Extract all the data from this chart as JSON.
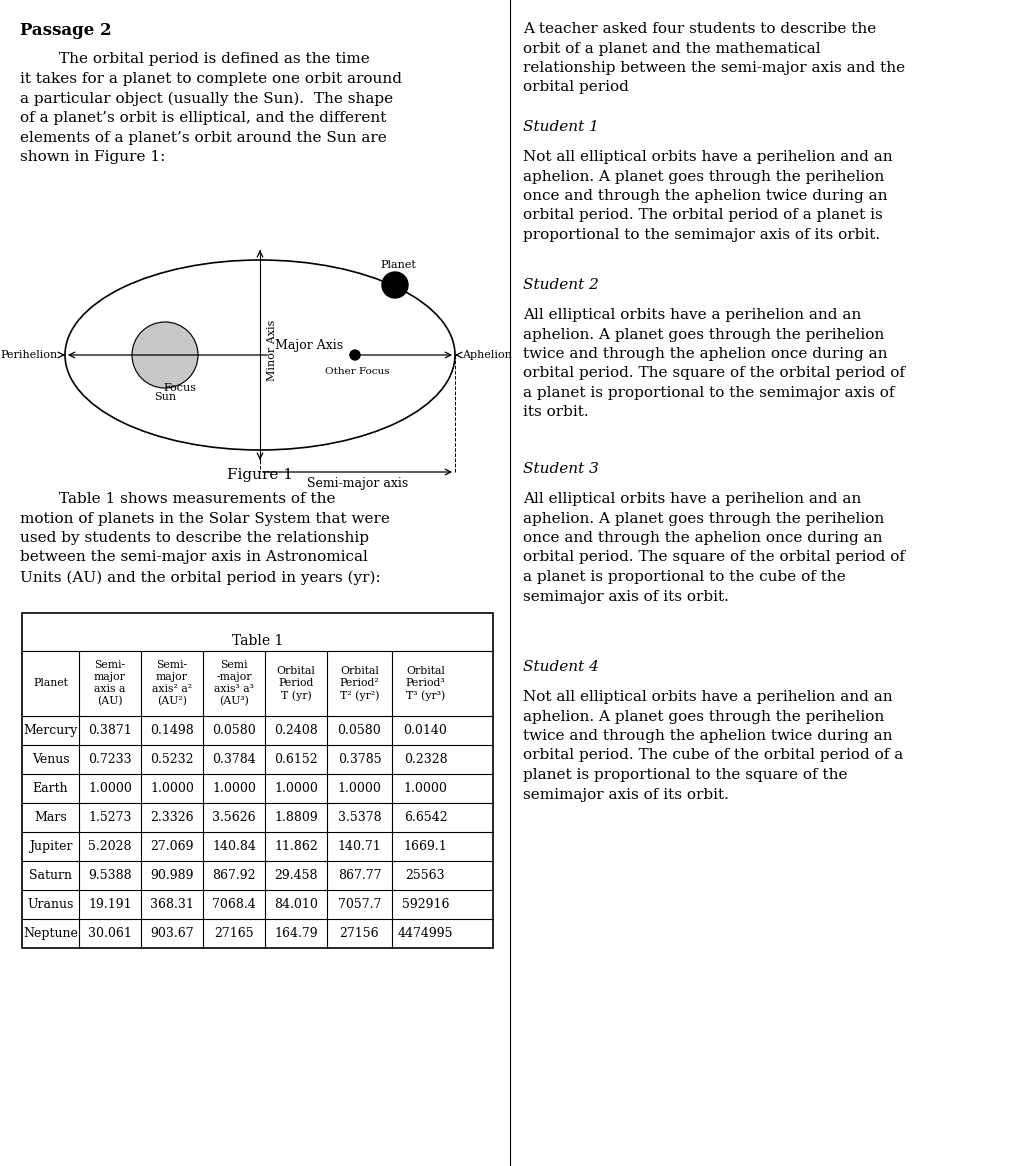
{
  "passage_title": "Passage 2",
  "table_data": [
    [
      "Mercury",
      "0.3871",
      "0.1498",
      "0.0580",
      "0.2408",
      "0.0580",
      "0.0140"
    ],
    [
      "Venus",
      "0.7233",
      "0.5232",
      "0.3784",
      "0.6152",
      "0.3785",
      "0.2328"
    ],
    [
      "Earth",
      "1.0000",
      "1.0000",
      "1.0000",
      "1.0000",
      "1.0000",
      "1.0000"
    ],
    [
      "Mars",
      "1.5273",
      "2.3326",
      "3.5626",
      "1.8809",
      "3.5378",
      "6.6542"
    ],
    [
      "Jupiter",
      "5.2028",
      "27.069",
      "140.84",
      "11.862",
      "140.71",
      "1669.1"
    ],
    [
      "Saturn",
      "9.5388",
      "90.989",
      "867.92",
      "29.458",
      "867.77",
      "25563"
    ],
    [
      "Uranus",
      "19.191",
      "368.31",
      "7068.4",
      "84.010",
      "7057.7",
      "592916"
    ],
    [
      "Neptune",
      "30.061",
      "903.67",
      "27165",
      "164.79",
      "27156",
      "4474995"
    ]
  ],
  "bg_color": "#ffffff"
}
